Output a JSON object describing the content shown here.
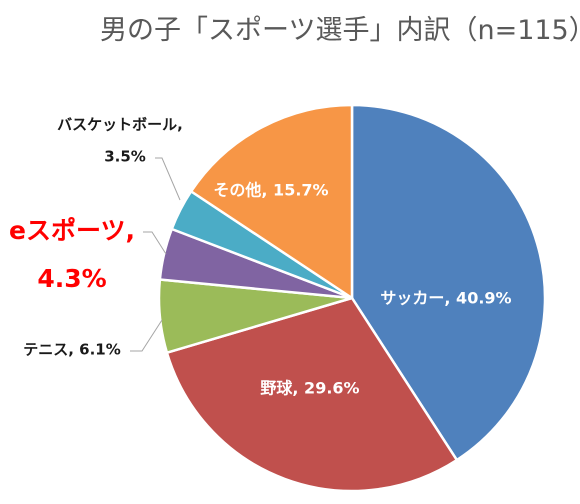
{
  "chart_data": {
    "type": "pie",
    "title": "男の子「スポーツ選手」内訳（n=115）",
    "slices": [
      {
        "name": "サッカー",
        "value": 40.9,
        "value_text": "40.9%",
        "color": "#4F81BD"
      },
      {
        "name": "野球",
        "value": 29.6,
        "value_text": "29.6%",
        "color": "#C0504D"
      },
      {
        "name": "テニス",
        "value": 6.1,
        "value_text": "6.1%",
        "color": "#9BBB59"
      },
      {
        "name": "eスポーツ",
        "value": 4.3,
        "value_text": "4.3%",
        "color": "#8064A2",
        "highlight": true,
        "highlight_color": "#FF0000"
      },
      {
        "name": "バスケットボール",
        "value": 3.5,
        "value_text": "3.5%",
        "color": "#4BACC6"
      },
      {
        "name": "その他",
        "value": 15.7,
        "value_text": "15.7%",
        "color": "#F79646"
      }
    ]
  }
}
